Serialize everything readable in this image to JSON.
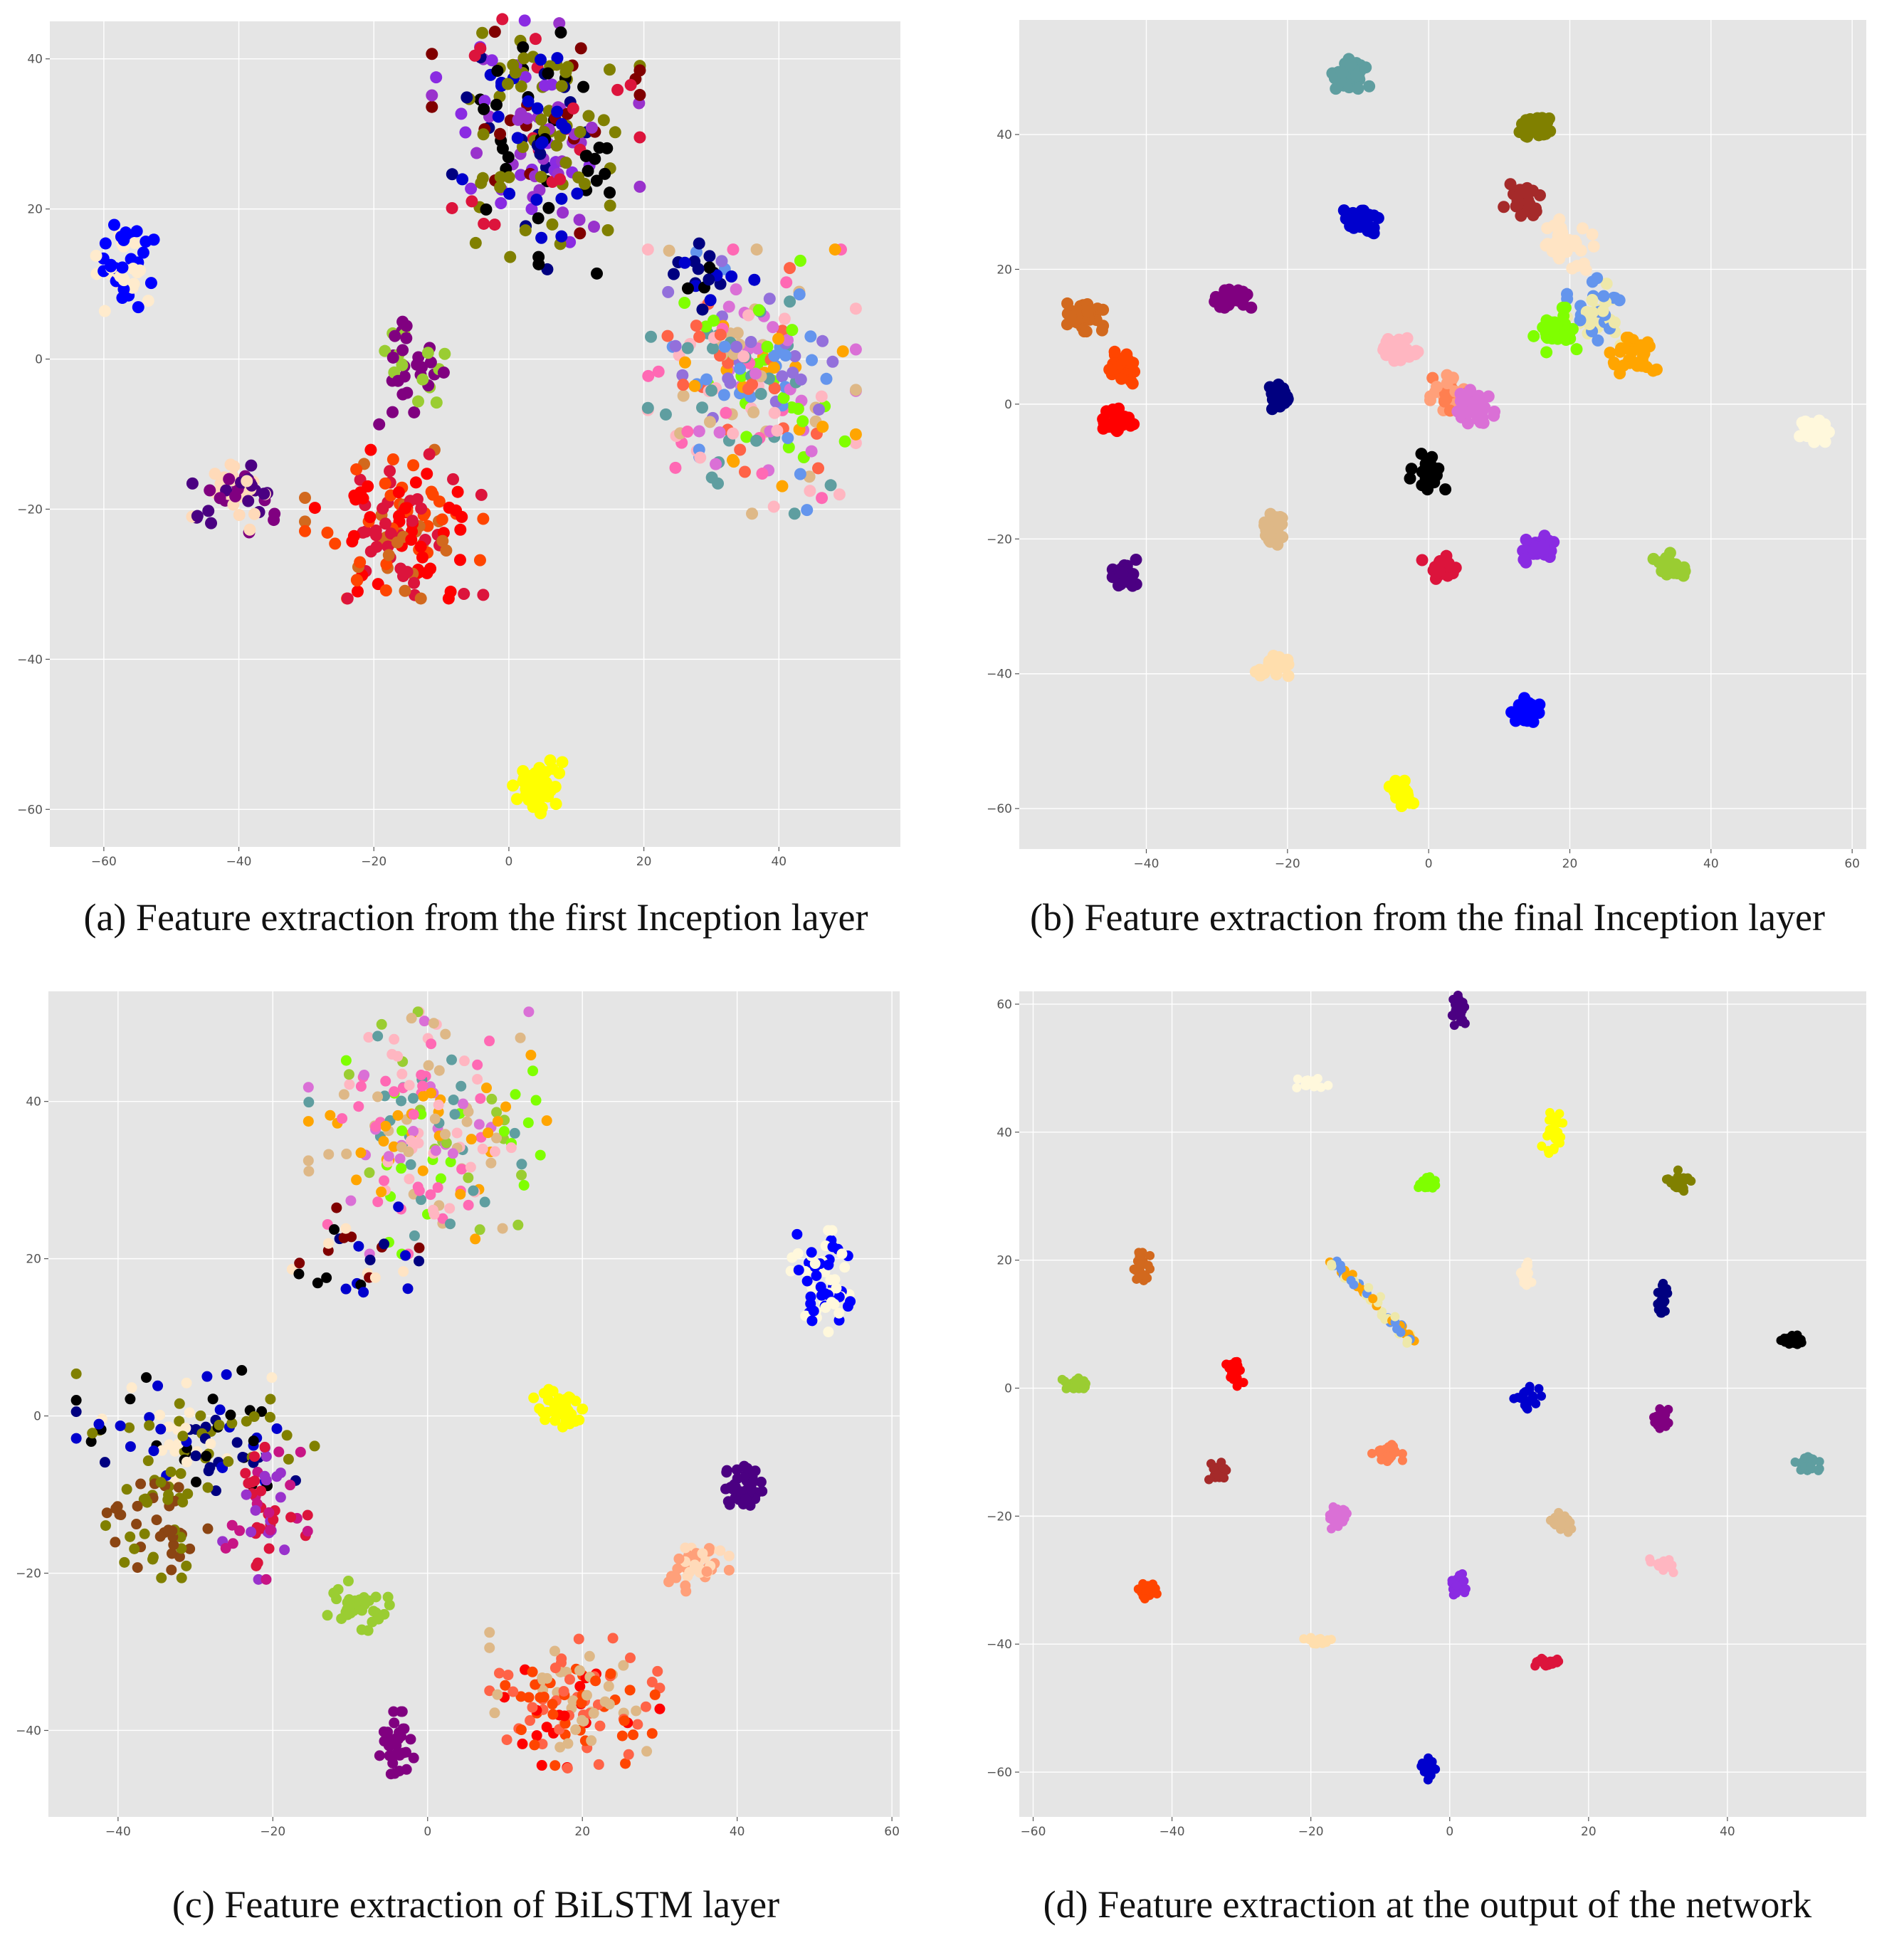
{
  "chart_data": [
    {
      "type": "scatter",
      "caption": "(a) Feature extraction from the first Inception layer",
      "xlim": [
        -68,
        58
      ],
      "ylim": [
        -65,
        45
      ],
      "xticks": [
        -60,
        -40,
        -20,
        0,
        20,
        40
      ],
      "yticks": [
        -60,
        -40,
        -20,
        0,
        20,
        40
      ],
      "grid": true,
      "clusters": [
        {
          "x": 4,
          "y": 29,
          "sx": 7,
          "sy": 8,
          "n": 160,
          "colors": [
            "#800000",
            "#9932cc",
            "#808000",
            "#dc143c",
            "#8a2be2",
            "#000080",
            "#000000"
          ]
        },
        {
          "x": 4,
          "y": 29,
          "sx": 5,
          "sy": 7,
          "n": 60,
          "colors": [
            "#0000cd",
            "#000000",
            "#808000"
          ]
        },
        {
          "x": -57,
          "y": 13,
          "sx": 2,
          "sy": 3,
          "n": 45,
          "colors": [
            "#0000ff",
            "#ffebcd"
          ]
        },
        {
          "x": -15,
          "y": -1,
          "sx": 2.5,
          "sy": 3.5,
          "n": 40,
          "colors": [
            "#800080",
            "#9acd32"
          ]
        },
        {
          "x": -41,
          "y": -18,
          "sx": 3,
          "sy": 3,
          "n": 55,
          "colors": [
            "#4b0082",
            "#ffdab9",
            "#800080"
          ]
        },
        {
          "x": -17,
          "y": -22,
          "sx": 6,
          "sy": 4.5,
          "n": 140,
          "colors": [
            "#ff4500",
            "#ff0000",
            "#dc143c",
            "#d2691e"
          ]
        },
        {
          "x": 36,
          "y": -3,
          "sx": 7,
          "sy": 8,
          "n": 230,
          "colors": [
            "#ffa500",
            "#5f9ea0",
            "#da70d6",
            "#ffb6c1",
            "#6495ed",
            "#7fff00",
            "#ff6347",
            "#9370db",
            "#deb887",
            "#ff69b4"
          ]
        },
        {
          "x": 30,
          "y": 11,
          "sx": 3,
          "sy": 2,
          "n": 20,
          "colors": [
            "#000000",
            "#000080",
            "#0000cd"
          ]
        },
        {
          "x": 5,
          "y": -57,
          "sx": 2,
          "sy": 1.6,
          "n": 45,
          "colors": [
            "#ffff00"
          ]
        }
      ]
    },
    {
      "type": "scatter",
      "caption": "(b) Feature extraction from the final Inception layer",
      "xlim": [
        -58,
        62
      ],
      "ylim": [
        -66,
        57
      ],
      "xticks": [
        -40,
        -20,
        0,
        20,
        40,
        60
      ],
      "yticks": [
        -60,
        -40,
        -20,
        0,
        20,
        40
      ],
      "grid": true,
      "clusters": [
        {
          "x": -11,
          "y": 49,
          "sx": 1.2,
          "sy": 1,
          "n": 35,
          "colors": [
            "#5f9ea0"
          ]
        },
        {
          "x": 15,
          "y": 41,
          "sx": 1.2,
          "sy": 1,
          "n": 35,
          "colors": [
            "#808000"
          ]
        },
        {
          "x": 13.5,
          "y": 30,
          "sx": 1.3,
          "sy": 1.2,
          "n": 35,
          "colors": [
            "#a52a2a"
          ]
        },
        {
          "x": -10,
          "y": 27,
          "sx": 1.3,
          "sy": 1,
          "n": 35,
          "colors": [
            "#0000cd"
          ]
        },
        {
          "x": 19,
          "y": 24,
          "sx": 2,
          "sy": 2,
          "n": 30,
          "colors": [
            "#ffe4c4"
          ]
        },
        {
          "x": -28,
          "y": 15.5,
          "sx": 1.5,
          "sy": 0.9,
          "n": 30,
          "colors": [
            "#800080"
          ]
        },
        {
          "x": -49,
          "y": 13,
          "sx": 1.3,
          "sy": 1,
          "n": 40,
          "colors": [
            "#d2691e"
          ]
        },
        {
          "x": 24,
          "y": 14,
          "sx": 2,
          "sy": 2.5,
          "n": 40,
          "colors": [
            "#6495ed",
            "#eee8aa"
          ]
        },
        {
          "x": 18,
          "y": 11,
          "sx": 1.5,
          "sy": 1.5,
          "n": 35,
          "colors": [
            "#7fff00"
          ]
        },
        {
          "x": 29,
          "y": 7,
          "sx": 1.5,
          "sy": 1.3,
          "n": 35,
          "colors": [
            "#ffa500"
          ]
        },
        {
          "x": -4,
          "y": 8,
          "sx": 1.2,
          "sy": 0.9,
          "n": 30,
          "colors": [
            "#ffb6c1"
          ]
        },
        {
          "x": -43.5,
          "y": 5,
          "sx": 1,
          "sy": 1.3,
          "n": 30,
          "colors": [
            "#ff4500"
          ]
        },
        {
          "x": 3,
          "y": 1,
          "sx": 1.6,
          "sy": 1.5,
          "n": 35,
          "colors": [
            "#ff7f50",
            "#ffa07a"
          ]
        },
        {
          "x": 6.5,
          "y": -0.5,
          "sx": 1.5,
          "sy": 1.2,
          "n": 35,
          "colors": [
            "#da70d6"
          ]
        },
        {
          "x": -21.5,
          "y": 1,
          "sx": 0.9,
          "sy": 1,
          "n": 25,
          "colors": [
            "#000080"
          ]
        },
        {
          "x": -44,
          "y": -2.5,
          "sx": 1,
          "sy": 1,
          "n": 35,
          "colors": [
            "#ff0000"
          ]
        },
        {
          "x": 54.5,
          "y": -4,
          "sx": 1,
          "sy": 0.8,
          "n": 25,
          "colors": [
            "#fff8dc"
          ]
        },
        {
          "x": 0,
          "y": -10,
          "sx": 1.2,
          "sy": 1.2,
          "n": 30,
          "colors": [
            "#000000"
          ]
        },
        {
          "x": -22,
          "y": -18.5,
          "sx": 1,
          "sy": 1.2,
          "n": 30,
          "colors": [
            "#deb887"
          ]
        },
        {
          "x": 16,
          "y": -21.5,
          "sx": 1.2,
          "sy": 0.9,
          "n": 35,
          "colors": [
            "#8a2be2"
          ]
        },
        {
          "x": 34.5,
          "y": -24,
          "sx": 1.3,
          "sy": 0.9,
          "n": 25,
          "colors": [
            "#9acd32"
          ]
        },
        {
          "x": 1.5,
          "y": -24.5,
          "sx": 1.1,
          "sy": 0.9,
          "n": 30,
          "colors": [
            "#dc143c"
          ]
        },
        {
          "x": -43,
          "y": -25.5,
          "sx": 1,
          "sy": 1.1,
          "n": 30,
          "colors": [
            "#4b0082"
          ]
        },
        {
          "x": -22,
          "y": -39,
          "sx": 1.2,
          "sy": 0.8,
          "n": 25,
          "colors": [
            "#ffdead"
          ]
        },
        {
          "x": 13.5,
          "y": -45.5,
          "sx": 1,
          "sy": 1,
          "n": 30,
          "colors": [
            "#0000ff"
          ]
        },
        {
          "x": -4,
          "y": -58,
          "sx": 0.9,
          "sy": 1,
          "n": 30,
          "colors": [
            "#ffff00"
          ]
        }
      ]
    },
    {
      "type": "scatter",
      "caption": "(c) Feature extraction of BiLSTM layer",
      "xlim": [
        -49,
        61
      ],
      "ylim": [
        -51,
        54
      ],
      "xticks": [
        -40,
        -20,
        0,
        20,
        40,
        60
      ],
      "yticks": [
        -40,
        -20,
        0,
        20,
        40
      ],
      "grid": true,
      "clusters": [
        {
          "x": 0,
          "y": 36,
          "sx": 7,
          "sy": 7,
          "n": 210,
          "colors": [
            "#da70d6",
            "#ffb6c1",
            "#5f9ea0",
            "#ffa500",
            "#7fff00",
            "#deb887",
            "#ff69b4",
            "#9acd32"
          ]
        },
        {
          "x": -10,
          "y": 20,
          "sx": 5,
          "sy": 3,
          "n": 30,
          "colors": [
            "#000000",
            "#800000",
            "#0000cd",
            "#ffe4c4",
            "#000080"
          ]
        },
        {
          "x": 51,
          "y": 17,
          "sx": 2,
          "sy": 3,
          "n": 65,
          "colors": [
            "#0000ff",
            "#fff8dc"
          ]
        },
        {
          "x": 17,
          "y": 1,
          "sx": 1.5,
          "sy": 1.3,
          "n": 40,
          "colors": [
            "#ffff00"
          ]
        },
        {
          "x": -30,
          "y": -3,
          "sx": 7,
          "sy": 4,
          "n": 110,
          "colors": [
            "#000080",
            "#ffebcd",
            "#000000",
            "#0000cd",
            "#808000"
          ]
        },
        {
          "x": -35,
          "y": -14,
          "sx": 3,
          "sy": 3,
          "n": 55,
          "colors": [
            "#808000",
            "#8b4513"
          ]
        },
        {
          "x": -21,
          "y": -12,
          "sx": 2.5,
          "sy": 4,
          "n": 55,
          "colors": [
            "#dc143c",
            "#9932cc",
            "#c71585"
          ]
        },
        {
          "x": 41,
          "y": -9,
          "sx": 1.5,
          "sy": 1.5,
          "n": 40,
          "colors": [
            "#4b0082"
          ]
        },
        {
          "x": 35,
          "y": -19,
          "sx": 1.8,
          "sy": 1.5,
          "n": 40,
          "colors": [
            "#ffdab9",
            "#ffa07a"
          ]
        },
        {
          "x": -9,
          "y": -24,
          "sx": 2,
          "sy": 1.5,
          "n": 35,
          "colors": [
            "#9acd32"
          ]
        },
        {
          "x": 19,
          "y": -36,
          "sx": 5,
          "sy": 4,
          "n": 130,
          "colors": [
            "#ff4500",
            "#ff0000",
            "#deb887",
            "#ff6347"
          ]
        },
        {
          "x": -4,
          "y": -42,
          "sx": 1,
          "sy": 2,
          "n": 35,
          "colors": [
            "#800080"
          ]
        }
      ]
    },
    {
      "type": "scatter",
      "caption": "(d) Feature extraction at the output of the network",
      "xlim": [
        -62,
        60
      ],
      "ylim": [
        -67,
        62
      ],
      "xticks": [
        -60,
        -40,
        -20,
        0,
        20,
        40
      ],
      "yticks": [
        -60,
        -40,
        -20,
        0,
        20,
        40,
        60
      ],
      "grid": true,
      "clusters": [
        {
          "x": 1.5,
          "y": 59,
          "sx": 0.6,
          "sy": 1.2,
          "n": 25,
          "colors": [
            "#4b0082"
          ]
        },
        {
          "x": -20,
          "y": 47.5,
          "sx": 1.2,
          "sy": 0.4,
          "n": 20,
          "colors": [
            "#fff8dc"
          ]
        },
        {
          "x": 15,
          "y": 40,
          "sx": 0.8,
          "sy": 1.5,
          "n": 25,
          "colors": [
            "#ffff00"
          ]
        },
        {
          "x": -3,
          "y": 32,
          "sx": 0.8,
          "sy": 0.6,
          "n": 25,
          "colors": [
            "#7fff00"
          ]
        },
        {
          "x": 33,
          "y": 32.5,
          "sx": 0.8,
          "sy": 0.8,
          "n": 25,
          "colors": [
            "#808000"
          ]
        },
        {
          "x": -44.5,
          "y": 19,
          "sx": 0.6,
          "sy": 1,
          "n": 25,
          "colors": [
            "#d2691e"
          ]
        },
        {
          "x": 11,
          "y": 17.5,
          "sx": 0.5,
          "sy": 1,
          "n": 20,
          "colors": [
            "#ffebcd"
          ]
        },
        {
          "x": 30.5,
          "y": 13.5,
          "sx": 0.4,
          "sy": 1.3,
          "n": 20,
          "colors": [
            "#000080"
          ]
        },
        {
          "x": 49.5,
          "y": 7.5,
          "sx": 1,
          "sy": 0.5,
          "n": 25,
          "colors": [
            "#000000"
          ]
        },
        {
          "x": -54,
          "y": 0.8,
          "sx": 1,
          "sy": 0.4,
          "n": 25,
          "colors": [
            "#9acd32"
          ]
        },
        {
          "x": -31,
          "y": 2.5,
          "sx": 0.6,
          "sy": 1,
          "n": 25,
          "colors": [
            "#ff0000"
          ]
        },
        {
          "x": 11,
          "y": -1.5,
          "sx": 1,
          "sy": 0.8,
          "n": 25,
          "colors": [
            "#0000cd"
          ]
        },
        {
          "x": 30.5,
          "y": -5,
          "sx": 0.5,
          "sy": 0.8,
          "n": 25,
          "colors": [
            "#800080"
          ]
        },
        {
          "x": 51.5,
          "y": -12,
          "sx": 0.8,
          "sy": 0.6,
          "n": 25,
          "colors": [
            "#5f9ea0"
          ]
        },
        {
          "x": -9,
          "y": -10,
          "sx": 1,
          "sy": 0.8,
          "n": 25,
          "colors": [
            "#ff7f50"
          ]
        },
        {
          "x": -33.5,
          "y": -13,
          "sx": 0.6,
          "sy": 0.7,
          "n": 25,
          "colors": [
            "#a52a2a"
          ]
        },
        {
          "x": 16,
          "y": -21,
          "sx": 0.7,
          "sy": 0.8,
          "n": 25,
          "colors": [
            "#deb887"
          ]
        },
        {
          "x": -16,
          "y": -20,
          "sx": 0.7,
          "sy": 0.9,
          "n": 25,
          "colors": [
            "#da70d6"
          ]
        },
        {
          "x": 30.5,
          "y": -27.5,
          "sx": 0.8,
          "sy": 0.6,
          "n": 20,
          "colors": [
            "#ffb6c1"
          ]
        },
        {
          "x": -43.5,
          "y": -31.5,
          "sx": 0.7,
          "sy": 0.7,
          "n": 25,
          "colors": [
            "#ff4500"
          ]
        },
        {
          "x": 1,
          "y": -31,
          "sx": 0.6,
          "sy": 0.9,
          "n": 25,
          "colors": [
            "#8a2be2"
          ]
        },
        {
          "x": -19,
          "y": -39.5,
          "sx": 1,
          "sy": 0.3,
          "n": 20,
          "colors": [
            "#ffdead"
          ]
        },
        {
          "x": 14,
          "y": -43,
          "sx": 1,
          "sy": 0.4,
          "n": 25,
          "colors": [
            "#dc143c"
          ]
        },
        {
          "x": -3,
          "y": -59.5,
          "sx": 0.5,
          "sy": 1,
          "n": 25,
          "colors": [
            "#0000cd"
          ]
        }
      ],
      "segments": [
        {
          "x1": -17,
          "y1": 20,
          "x2": -5,
          "y2": 7,
          "n": 60,
          "colors": [
            "#ffa500",
            "#eee8aa",
            "#6495ed"
          ]
        }
      ]
    }
  ]
}
